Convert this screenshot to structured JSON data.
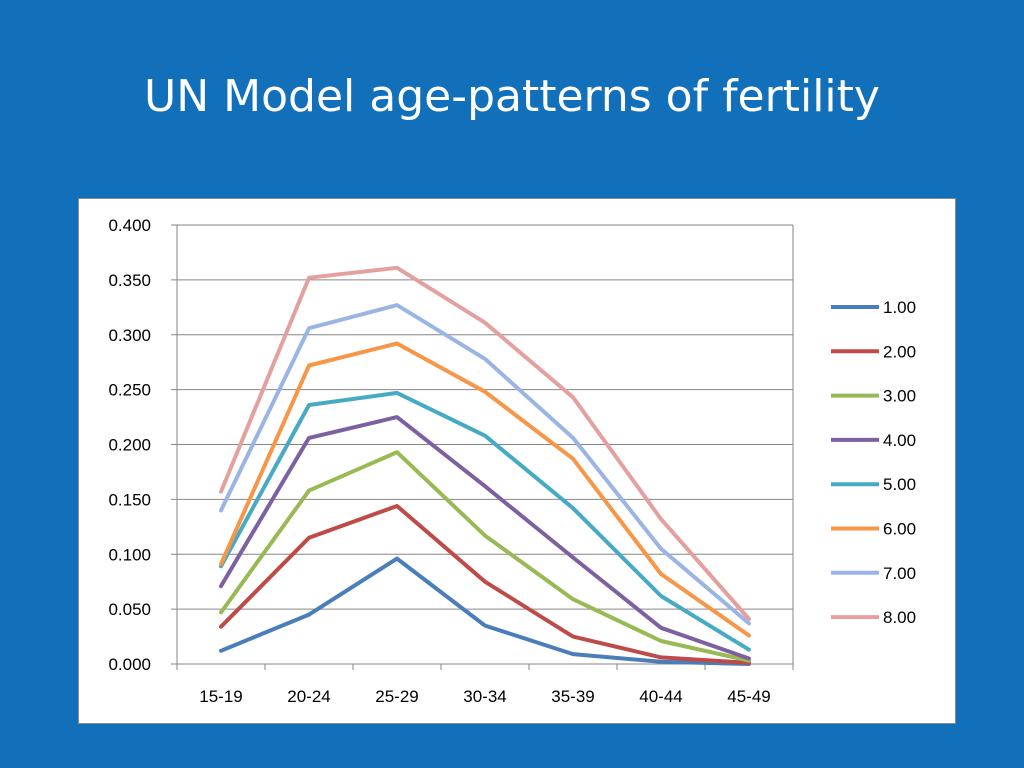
{
  "slide": {
    "title": "UN Model age-patterns of fertility"
  },
  "chart_data": {
    "type": "line",
    "categories": [
      "15-19",
      "20-24",
      "25-29",
      "30-34",
      "35-39",
      "40-44",
      "45-49"
    ],
    "ylim": [
      0,
      0.4
    ],
    "yticks": [
      "0.000",
      "0.050",
      "0.100",
      "0.150",
      "0.200",
      "0.250",
      "0.300",
      "0.350",
      "0.400"
    ],
    "grid": "horizontal",
    "legend_position": "right",
    "series": [
      {
        "name": "1.00",
        "color": "#4A7EBB",
        "values": [
          0.012,
          0.045,
          0.096,
          0.035,
          0.009,
          0.002,
          0.0
        ]
      },
      {
        "name": "2.00",
        "color": "#BE4B48",
        "values": [
          0.034,
          0.115,
          0.144,
          0.075,
          0.025,
          0.006,
          0.001
        ]
      },
      {
        "name": "3.00",
        "color": "#98B954",
        "values": [
          0.047,
          0.158,
          0.193,
          0.117,
          0.059,
          0.021,
          0.003
        ]
      },
      {
        "name": "4.00",
        "color": "#7D60A0",
        "values": [
          0.071,
          0.206,
          0.225,
          0.162,
          0.097,
          0.033,
          0.005
        ]
      },
      {
        "name": "5.00",
        "color": "#46AAC5",
        "values": [
          0.089,
          0.236,
          0.247,
          0.208,
          0.142,
          0.062,
          0.013
        ]
      },
      {
        "name": "6.00",
        "color": "#F79646",
        "values": [
          0.091,
          0.272,
          0.292,
          0.248,
          0.187,
          0.082,
          0.026
        ]
      },
      {
        "name": "7.00",
        "color": "#9AB5E4",
        "values": [
          0.14,
          0.306,
          0.327,
          0.278,
          0.206,
          0.105,
          0.037
        ]
      },
      {
        "name": "8.00",
        "color": "#E3A09E",
        "values": [
          0.157,
          0.352,
          0.361,
          0.311,
          0.243,
          0.132,
          0.041
        ]
      }
    ]
  }
}
